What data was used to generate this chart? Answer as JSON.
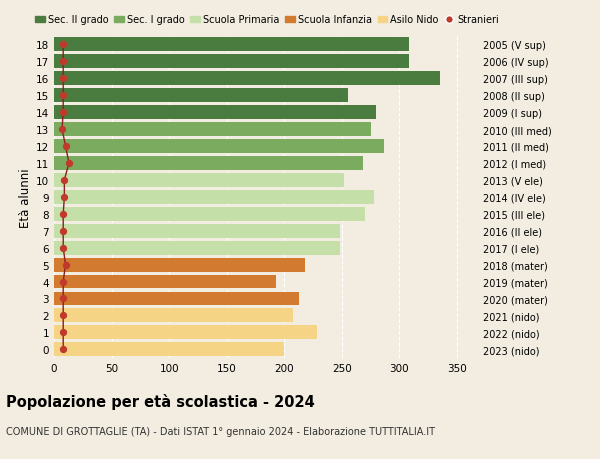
{
  "ages": [
    18,
    17,
    16,
    15,
    14,
    13,
    12,
    11,
    10,
    9,
    8,
    7,
    6,
    5,
    4,
    3,
    2,
    1,
    0
  ],
  "right_labels": [
    "2005 (V sup)",
    "2006 (IV sup)",
    "2007 (III sup)",
    "2008 (II sup)",
    "2009 (I sup)",
    "2010 (III med)",
    "2011 (II med)",
    "2012 (I med)",
    "2013 (V ele)",
    "2014 (IV ele)",
    "2015 (III ele)",
    "2016 (II ele)",
    "2017 (I ele)",
    "2018 (mater)",
    "2019 (mater)",
    "2020 (mater)",
    "2021 (nido)",
    "2022 (nido)",
    "2023 (nido)"
  ],
  "bar_values": [
    308,
    308,
    335,
    255,
    280,
    275,
    287,
    268,
    252,
    278,
    270,
    248,
    248,
    218,
    193,
    213,
    208,
    228,
    200
  ],
  "stranieri_values": [
    8,
    8,
    8,
    8,
    8,
    7,
    10,
    13,
    9,
    9,
    8,
    8,
    8,
    10,
    8,
    8,
    8,
    8,
    8
  ],
  "bar_colors": [
    "#4a7c3f",
    "#4a7c3f",
    "#4a7c3f",
    "#4a7c3f",
    "#4a7c3f",
    "#7aab5e",
    "#7aab5e",
    "#7aab5e",
    "#c5dfa8",
    "#c5dfa8",
    "#c5dfa8",
    "#c5dfa8",
    "#c5dfa8",
    "#d17a30",
    "#d17a30",
    "#d17a30",
    "#f5d585",
    "#f5d585",
    "#f5d585"
  ],
  "legend_labels": [
    "Sec. II grado",
    "Sec. I grado",
    "Scuola Primaria",
    "Scuola Infanzia",
    "Asilo Nido",
    "Stranieri"
  ],
  "legend_colors": [
    "#4a7c3f",
    "#7aab5e",
    "#c5dfa8",
    "#d17a30",
    "#f5d585",
    "#c0392b"
  ],
  "ylabel_left": "Età alunni",
  "title": "Popolazione per età scolastica - 2024",
  "subtitle": "COMUNE DI GROTTAGLIE (TA) - Dati ISTAT 1° gennaio 2024 - Elaborazione TUTTITALIA.IT",
  "xlim": [
    0,
    370
  ],
  "xticks": [
    0,
    50,
    100,
    150,
    200,
    250,
    300,
    350
  ],
  "background_color": "#f2ede0",
  "stranieri_color": "#c0392b",
  "line_color": "#8b2020"
}
